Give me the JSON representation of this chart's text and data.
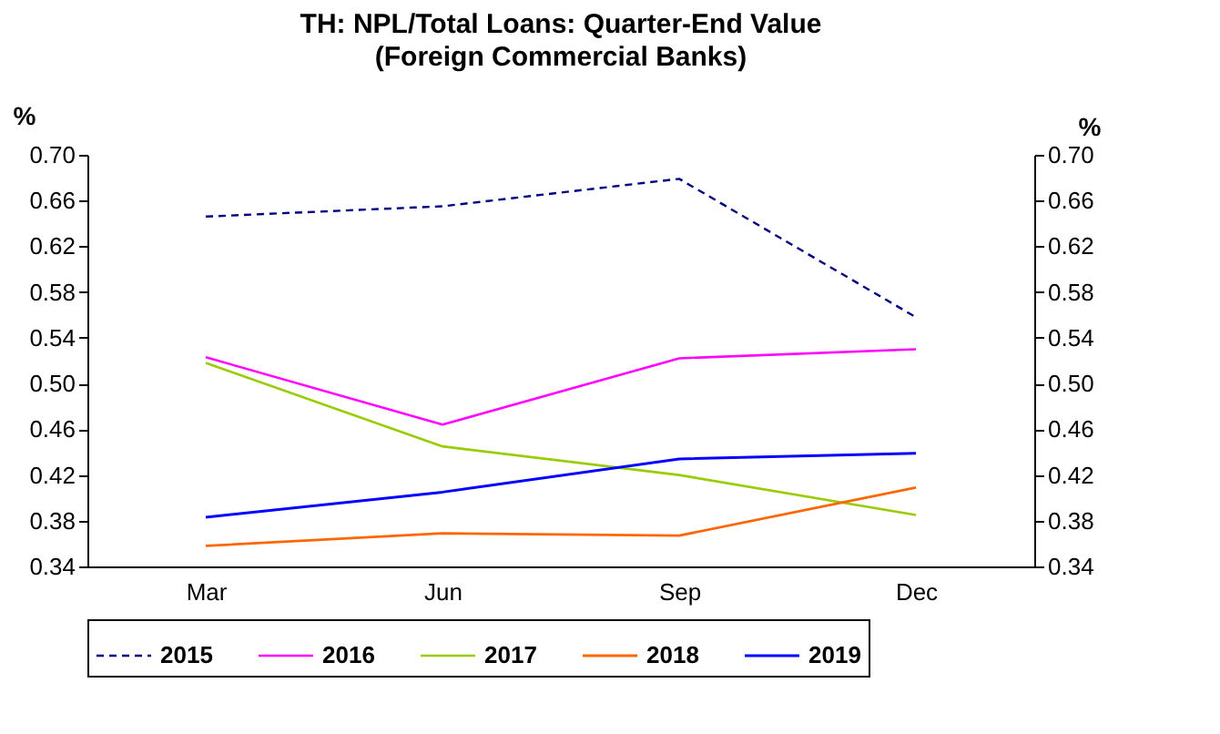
{
  "chart_data": {
    "type": "line",
    "title": "TH: NPL/Total Loans: Quarter-End Value",
    "subtitle": "(Foreign Commercial Banks)",
    "ylabel": "%",
    "y2label": "%",
    "categories": [
      "Mar",
      "Jun",
      "Sep",
      "Dec"
    ],
    "ylim": [
      0.34,
      0.7
    ],
    "yticks": [
      {
        "value": 0.34,
        "label": "0.34"
      },
      {
        "value": 0.38,
        "label": "0.38"
      },
      {
        "value": 0.42,
        "label": "0.42"
      },
      {
        "value": 0.46,
        "label": "0.46"
      },
      {
        "value": 0.5,
        "label": "0.50"
      },
      {
        "value": 0.54,
        "label": "0.54"
      },
      {
        "value": 0.58,
        "label": "0.58"
      },
      {
        "value": 0.62,
        "label": "0.62"
      },
      {
        "value": 0.66,
        "label": "0.66"
      },
      {
        "value": 0.7,
        "label": "0.70"
      }
    ],
    "y2lim": [
      0.34,
      0.7
    ],
    "y2ticks": [
      {
        "value": 0.34,
        "label": "0.34"
      },
      {
        "value": 0.38,
        "label": "0.38"
      },
      {
        "value": 0.42,
        "label": "0.42"
      },
      {
        "value": 0.46,
        "label": "0.46"
      },
      {
        "value": 0.5,
        "label": "0.50"
      },
      {
        "value": 0.54,
        "label": "0.54"
      },
      {
        "value": 0.58,
        "label": "0.58"
      },
      {
        "value": 0.62,
        "label": "0.62"
      },
      {
        "value": 0.66,
        "label": "0.66"
      },
      {
        "value": 0.7,
        "label": "0.70"
      }
    ],
    "legend": "bottom",
    "grid": false,
    "marker": "none",
    "series": [
      {
        "name": "2015",
        "color": "#000080",
        "line_style": "dashed",
        "values": [
          0.646,
          0.655,
          0.679,
          0.558
        ]
      },
      {
        "name": "2016",
        "color": "#ff00ff",
        "line_style": "solid",
        "values": [
          0.523,
          0.464,
          0.522,
          0.53
        ]
      },
      {
        "name": "2017",
        "color": "#99cc00",
        "line_style": "solid",
        "values": [
          0.518,
          0.445,
          0.42,
          0.385
        ]
      },
      {
        "name": "2018",
        "color": "#ff6600",
        "line_style": "solid",
        "values": [
          0.358,
          0.369,
          0.367,
          0.409
        ]
      },
      {
        "name": "2019",
        "color": "#0000ff",
        "line_style": "solid",
        "values": [
          0.383,
          0.405,
          0.434,
          0.439
        ]
      }
    ]
  }
}
